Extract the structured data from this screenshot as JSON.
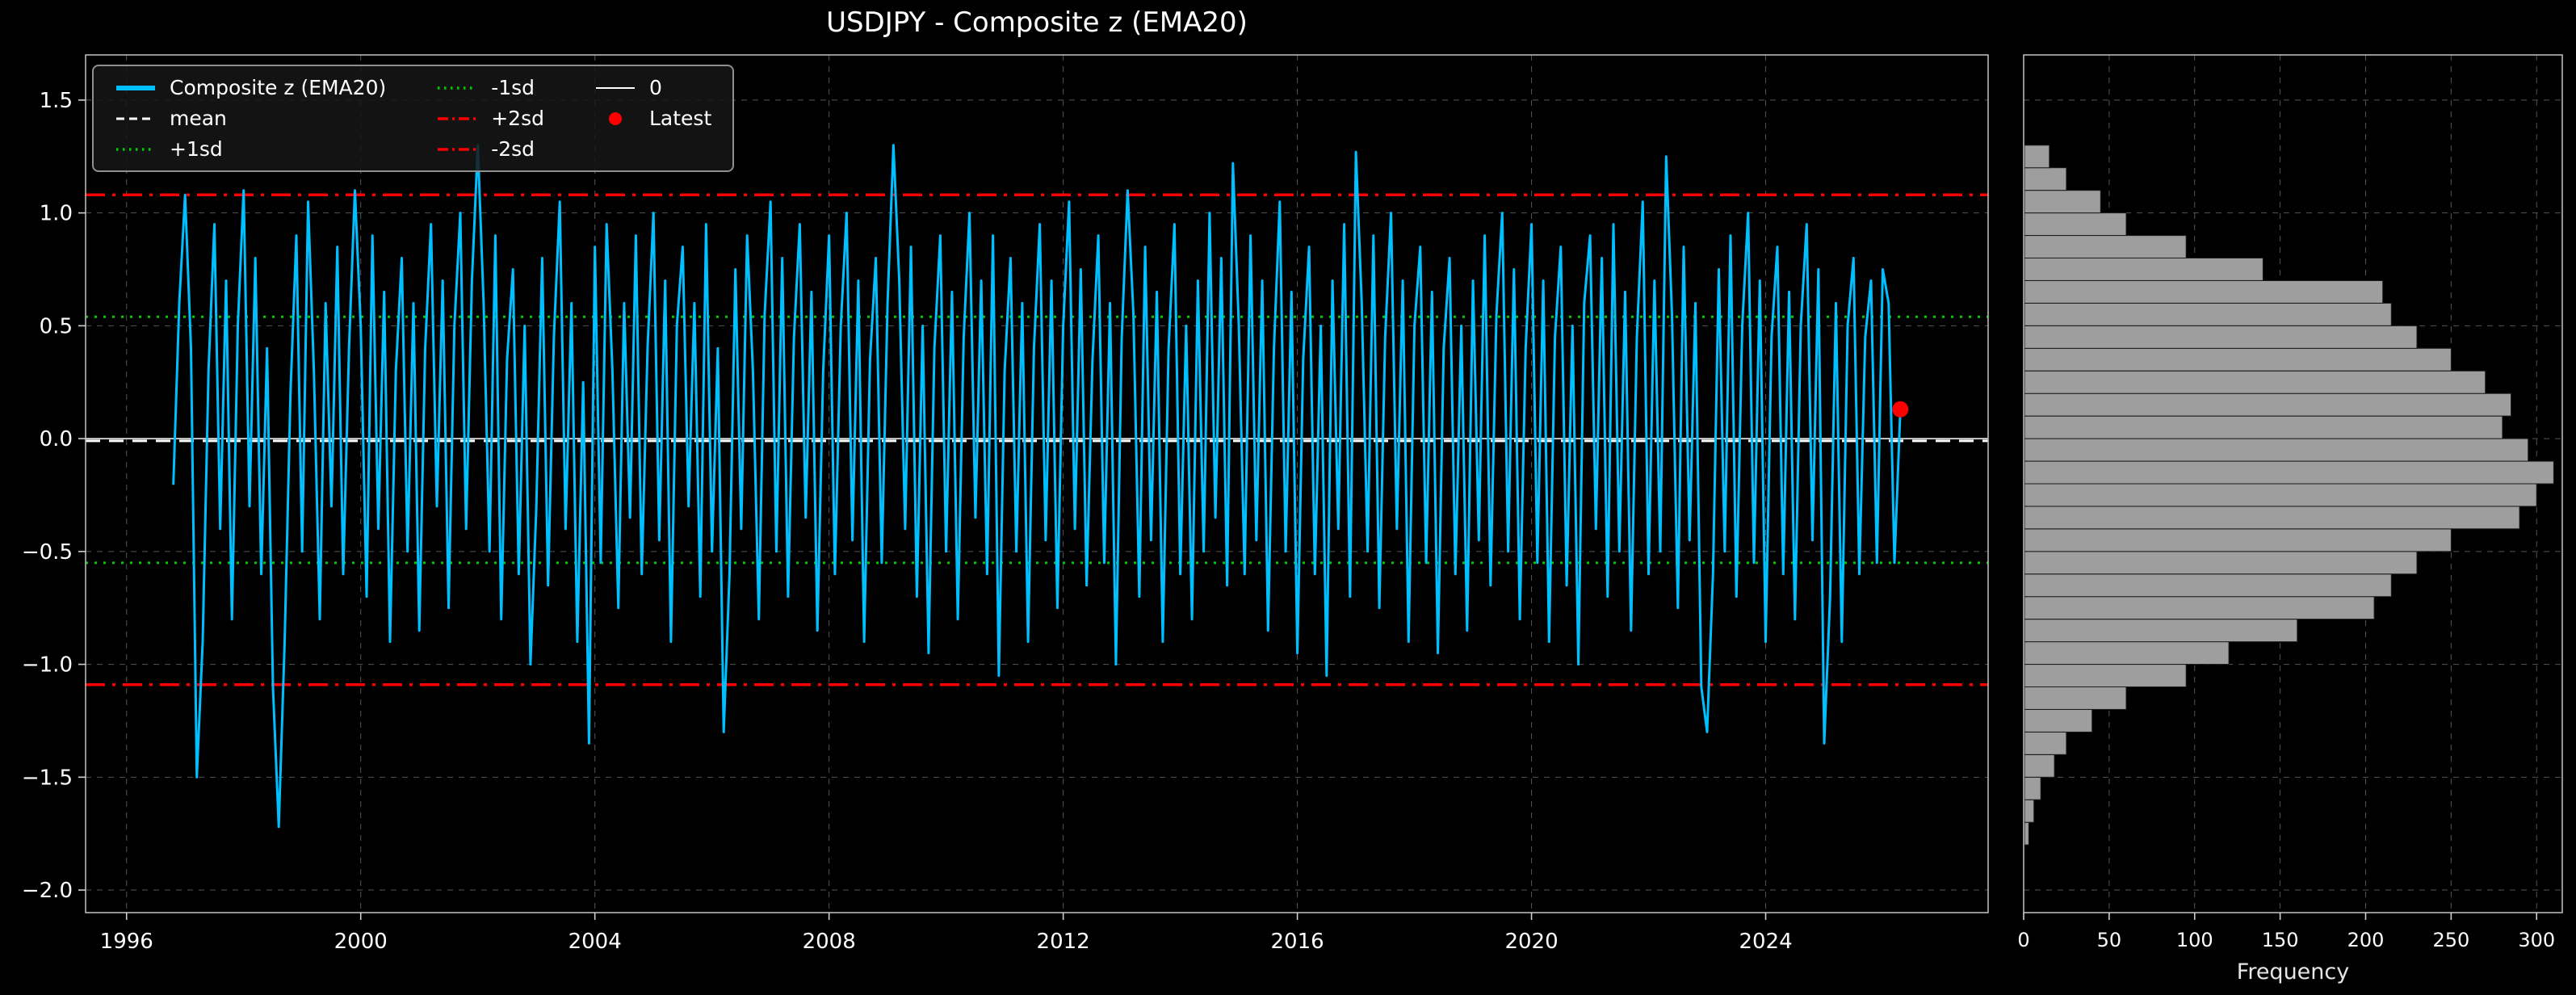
{
  "title": "USDJPY - Composite z (EMA20)",
  "colors": {
    "background": "#000000",
    "text": "#ffffff",
    "grid": "#555555",
    "series": "#00BFFF",
    "sd1": "#00cc00",
    "sd2": "#ff0000",
    "mean": "#ffffff",
    "hist_bar": "#9e9e9e"
  },
  "chart_data": {
    "type": "line",
    "title": "USDJPY - Composite z (EMA20)",
    "legend": {
      "columns": 3,
      "entries": [
        {
          "label": "Composite z (EMA20)",
          "color": "#00BFFF",
          "style": "solid-thick"
        },
        {
          "label": "mean",
          "color": "#ffffff",
          "style": "dashed"
        },
        {
          "label": "+1sd",
          "color": "#00cc00",
          "style": "dotted"
        },
        {
          "label": "-1sd",
          "color": "#00cc00",
          "style": "dotted"
        },
        {
          "label": "+2sd",
          "color": "#ff0000",
          "style": "dashdot"
        },
        {
          "label": "-2sd",
          "color": "#ff0000",
          "style": "dashdot"
        },
        {
          "label": "0",
          "color": "#ffffff",
          "style": "solid-thin"
        },
        {
          "label": "Latest",
          "color": "#ff0000",
          "style": "dot"
        }
      ]
    },
    "panels": [
      {
        "id": "timeseries",
        "xlim": [
          1995.3,
          2027.8
        ],
        "ylim": [
          -2.1,
          1.7
        ],
        "x_ticks": [
          1996,
          2000,
          2004,
          2008,
          2012,
          2016,
          2020,
          2024
        ],
        "y_ticks": [
          -2.0,
          -1.5,
          -1.0,
          -0.5,
          0.0,
          0.5,
          1.0,
          1.5
        ],
        "grid": true,
        "reference_lines": [
          {
            "label": "+2sd",
            "value": 1.08,
            "color": "#ff0000",
            "style": "dashdot"
          },
          {
            "label": "-2sd",
            "value": -1.09,
            "color": "#ff0000",
            "style": "dashdot"
          },
          {
            "label": "+1sd",
            "value": 0.54,
            "color": "#00cc00",
            "style": "dotted"
          },
          {
            "label": "-1sd",
            "value": -0.55,
            "color": "#00cc00",
            "style": "dotted"
          },
          {
            "label": "mean",
            "value": -0.01,
            "color": "#ffffff",
            "style": "dashed"
          },
          {
            "label": "0",
            "value": 0.0,
            "color": "#ffffff",
            "style": "solid"
          }
        ],
        "latest": {
          "label": "Latest",
          "x": 2026.3,
          "y": 0.13,
          "color": "#ff0000"
        },
        "series": {
          "name": "Composite z (EMA20)",
          "color": "#00BFFF",
          "x_start": 1996.8,
          "x_step": 0.1,
          "values": [
            -0.2,
            0.6,
            1.08,
            0.4,
            -1.5,
            -0.9,
            0.3,
            0.95,
            -0.4,
            0.7,
            -0.8,
            0.5,
            1.1,
            -0.3,
            0.8,
            -0.6,
            0.4,
            -1.1,
            -1.72,
            -0.9,
            0.2,
            0.9,
            -0.5,
            1.05,
            0.3,
            -0.8,
            0.6,
            -0.3,
            0.85,
            -0.6,
            0.4,
            1.1,
            0.5,
            -0.7,
            0.9,
            -0.4,
            0.65,
            -0.9,
            0.3,
            0.8,
            -0.5,
            0.6,
            -0.85,
            0.4,
            0.95,
            -0.3,
            0.7,
            -0.75,
            0.5,
            1.0,
            -0.4,
            0.7,
            1.3,
            0.6,
            -0.5,
            0.9,
            -0.8,
            0.35,
            0.75,
            -0.6,
            0.5,
            -1.0,
            -0.3,
            0.8,
            -0.65,
            0.45,
            1.05,
            -0.4,
            0.6,
            -0.9,
            0.25,
            -1.35,
            0.85,
            -0.55,
            0.95,
            0.3,
            -0.75,
            0.6,
            -0.35,
            0.9,
            -0.6,
            0.4,
            1.0,
            -0.45,
            0.7,
            -0.9,
            0.5,
            0.85,
            -0.3,
            0.6,
            -0.7,
            0.95,
            -0.5,
            0.4,
            -1.3,
            -0.6,
            0.75,
            -0.4,
            0.9,
            0.3,
            -0.8,
            0.55,
            1.05,
            -0.5,
            0.8,
            -0.7,
            0.45,
            0.95,
            -0.35,
            0.65,
            -0.85,
            0.3,
            0.9,
            -0.6,
            0.5,
            1.0,
            -0.45,
            0.7,
            -0.9,
            0.35,
            0.8,
            -0.55,
            0.6,
            1.3,
            0.7,
            -0.4,
            0.85,
            -0.7,
            0.5,
            -0.95,
            0.4,
            0.9,
            -0.5,
            0.65,
            -0.8,
            0.45,
            1.0,
            -0.35,
            0.7,
            -0.6,
            0.9,
            -1.05,
            0.3,
            0.8,
            -0.5,
            0.6,
            -0.9,
            0.4,
            0.95,
            -0.45,
            0.7,
            -0.75,
            0.5,
            1.05,
            -0.4,
            0.75,
            -0.65,
            0.35,
            0.9,
            -0.55,
            0.6,
            -1.0,
            0.45,
            1.1,
            0.55,
            -0.7,
            0.85,
            -0.45,
            0.65,
            -0.9,
            0.4,
            0.95,
            -0.6,
            0.5,
            -0.8,
            0.7,
            -0.5,
            1.0,
            -0.35,
            0.8,
            -0.65,
            1.22,
            0.5,
            -0.6,
            0.9,
            -0.45,
            0.7,
            -0.85,
            0.4,
            1.05,
            -0.5,
            0.65,
            -0.95,
            0.35,
            0.85,
            -0.6,
            0.5,
            -1.05,
            0.7,
            -0.4,
            0.95,
            -0.7,
            1.27,
            0.6,
            -0.5,
            0.9,
            -0.75,
            0.45,
            1.0,
            -0.4,
            0.7,
            -0.9,
            0.5,
            0.85,
            -0.55,
            0.65,
            -0.95,
            0.4,
            0.8,
            -0.6,
            0.5,
            -0.85,
            0.7,
            -0.45,
            0.9,
            -0.65,
            0.55,
            1.0,
            -0.5,
            0.75,
            -0.8,
            0.4,
            0.95,
            -0.55,
            0.7,
            -0.9,
            0.45,
            0.85,
            -0.65,
            0.5,
            -1.0,
            0.6,
            0.9,
            -0.4,
            0.8,
            -0.7,
            0.95,
            -0.5,
            0.65,
            -0.85,
            0.45,
            1.05,
            -0.6,
            0.7,
            -0.5,
            1.25,
            0.55,
            -0.75,
            0.85,
            -0.45,
            0.6,
            -1.1,
            -1.3,
            -0.6,
            0.75,
            -0.5,
            0.9,
            -0.7,
            0.5,
            1.0,
            -0.55,
            0.7,
            -0.9,
            0.45,
            0.85,
            -0.6,
            0.65,
            -0.8,
            0.5,
            0.95,
            -0.45,
            0.75,
            -1.35,
            -0.7,
            0.6,
            -0.9,
            0.5,
            0.8,
            -0.6,
            0.45,
            0.7,
            -0.55,
            0.75,
            0.6,
            -0.55,
            0.13
          ]
        }
      },
      {
        "id": "histogram",
        "type": "bar",
        "xlabel": "Frequency",
        "xlim": [
          0,
          315
        ],
        "x_ticks": [
          0,
          50,
          100,
          150,
          200,
          250,
          300
        ],
        "bar_color": "#9e9e9e",
        "bin_centers": [
          -1.75,
          -1.65,
          -1.55,
          -1.45,
          -1.35,
          -1.25,
          -1.15,
          -1.05,
          -0.95,
          -0.85,
          -0.75,
          -0.65,
          -0.55,
          -0.45,
          -0.35,
          -0.25,
          -0.15,
          -0.05,
          0.05,
          0.15,
          0.25,
          0.35,
          0.45,
          0.55,
          0.65,
          0.75,
          0.85,
          0.95,
          1.05,
          1.15,
          1.25
        ],
        "frequencies": [
          3,
          6,
          10,
          18,
          25,
          40,
          60,
          95,
          120,
          160,
          205,
          215,
          230,
          250,
          290,
          300,
          310,
          295,
          280,
          285,
          270,
          250,
          230,
          215,
          210,
          140,
          95,
          60,
          45,
          25,
          15
        ]
      }
    ]
  }
}
